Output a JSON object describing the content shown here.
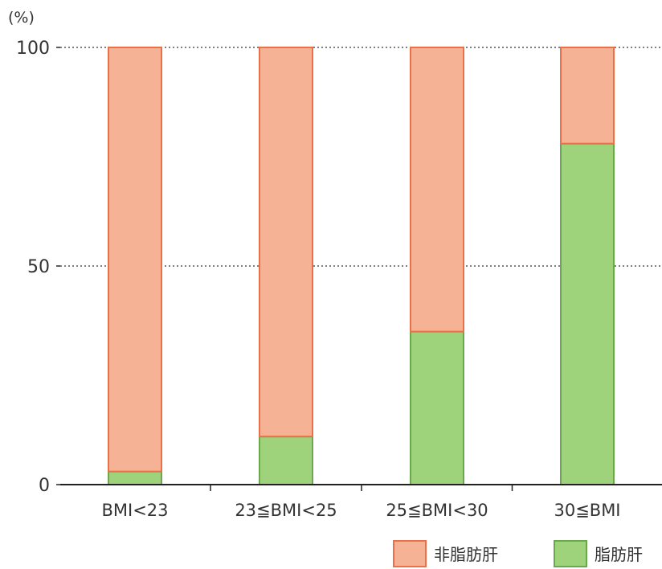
{
  "chart_data": {
    "type": "bar",
    "stacked": true,
    "unit": "(%)",
    "categories": [
      "BMI<23",
      "23≦BMI<25",
      "25≦BMI<30",
      "30≦BMI"
    ],
    "series": [
      {
        "name": "脂肪肝",
        "values": [
          3,
          11,
          35,
          78
        ],
        "color": "#9ed37c",
        "stroke": "#6aa84f"
      },
      {
        "name": "非脂肪肝",
        "values": [
          97,
          89,
          65,
          22
        ],
        "color": "#f6b294",
        "stroke": "#ea7048"
      }
    ],
    "yticks": [
      0,
      50,
      100
    ],
    "ylim": [
      0,
      100
    ],
    "grid": "dotted at 50 and 100",
    "legend": {
      "position": "bottom-right",
      "order": [
        "非脂肪肝",
        "脂肪肝"
      ]
    }
  }
}
